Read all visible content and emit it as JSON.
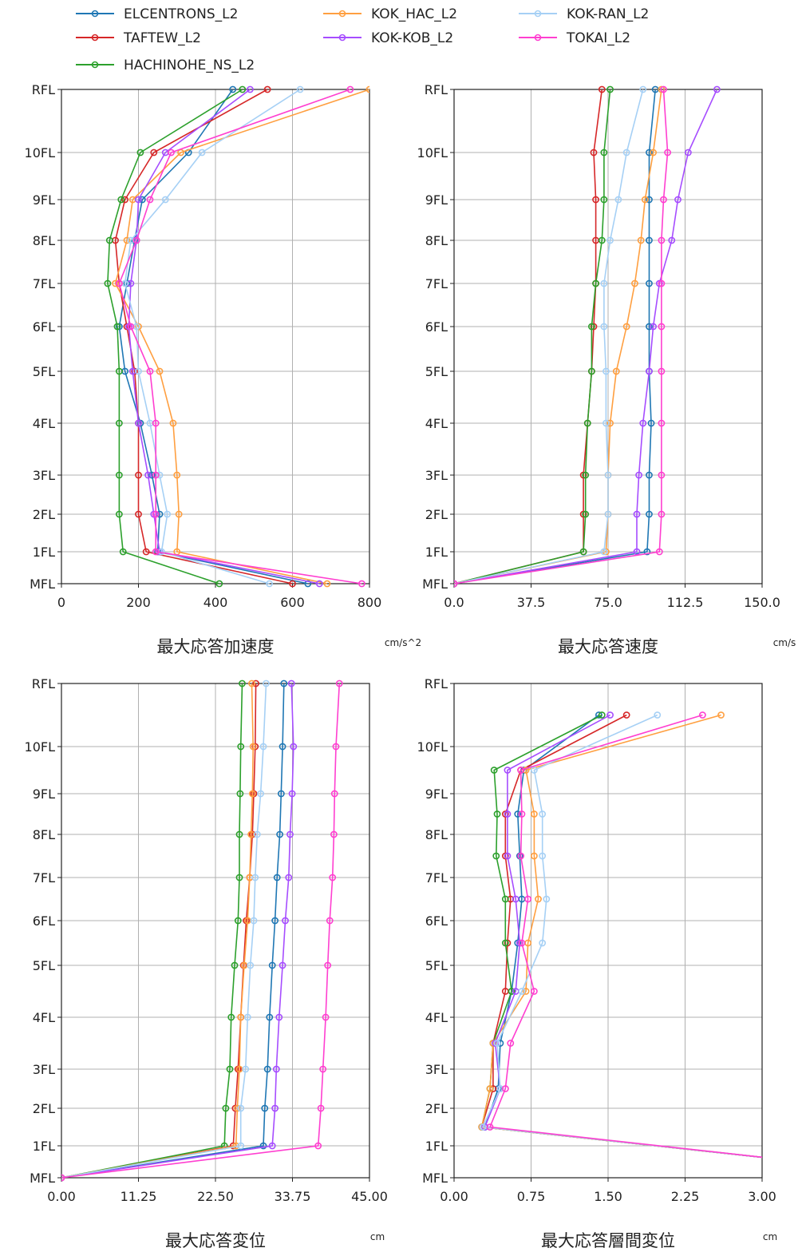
{
  "legend": {
    "placement": "top",
    "items": [
      {
        "label": "ELCENTRONS_L2",
        "color": "#1f77b4"
      },
      {
        "label": "TAFTEW_L2",
        "color": "#d62728"
      },
      {
        "label": "HACHINOHE_NS_L2",
        "color": "#2ca02c"
      },
      {
        "label": "KOK_HAC_L2",
        "color": "#ff9f40"
      },
      {
        "label": "KOK-KOB_L2",
        "color": "#a64dff"
      },
      {
        "label": "KOK-RAN_L2",
        "color": "#a6d0f5"
      },
      {
        "label": "TOKAI_L2",
        "color": "#ff3fd0"
      }
    ]
  },
  "floors": [
    "MFL",
    "1FL",
    "2FL",
    "3FL",
    "4FL",
    "5FL",
    "6FL",
    "7FL",
    "8FL",
    "9FL",
    "10FL",
    "RFL"
  ],
  "chart_data": [
    {
      "type": "line",
      "xlabel": "最大応答加速度",
      "unit": "cm/s^2",
      "xlim": [
        0,
        800
      ],
      "xticks": [
        "0",
        "200",
        "400",
        "600",
        "800"
      ],
      "grid": true,
      "series": [
        {
          "name": "ELCENTRONS_L2",
          "values": [
            640,
            250,
            255,
            235,
            205,
            165,
            150,
            170,
            190,
            210,
            330,
            445
          ]
        },
        {
          "name": "TAFTEW_L2",
          "values": [
            600,
            220,
            200,
            200,
            200,
            190,
            170,
            150,
            140,
            165,
            240,
            535
          ]
        },
        {
          "name": "HACHINOHE_NS_L2",
          "values": [
            410,
            160,
            150,
            150,
            150,
            150,
            145,
            120,
            125,
            155,
            205,
            470
          ]
        },
        {
          "name": "KOK_HAC_L2",
          "values": [
            690,
            300,
            305,
            300,
            290,
            255,
            200,
            140,
            170,
            185,
            310,
            800
          ]
        },
        {
          "name": "KOK-KOB_L2",
          "values": [
            670,
            255,
            240,
            225,
            200,
            185,
            175,
            180,
            195,
            200,
            270,
            490
          ]
        },
        {
          "name": "KOK-RAN_L2",
          "values": [
            540,
            260,
            275,
            255,
            230,
            200,
            195,
            165,
            180,
            270,
            365,
            620
          ]
        },
        {
          "name": "TOKAI_L2",
          "values": [
            780,
            245,
            245,
            245,
            245,
            230,
            180,
            150,
            195,
            230,
            285,
            750
          ]
        }
      ]
    },
    {
      "type": "line",
      "xlabel": "最大応答速度",
      "unit": "cm/s",
      "xlim": [
        0,
        150
      ],
      "xticks": [
        "0.0",
        "37.5",
        "75.0",
        "112.5",
        "150.0"
      ],
      "grid": true,
      "series": [
        {
          "name": "ELCENTRONS_L2",
          "values": [
            0,
            94,
            95,
            95,
            96,
            95,
            95,
            95,
            95,
            95,
            95,
            98
          ]
        },
        {
          "name": "TAFTEW_L2",
          "values": [
            0,
            63,
            63,
            63,
            65,
            67,
            68,
            69,
            69,
            69,
            68,
            72
          ]
        },
        {
          "name": "HACHINOHE_NS_L2",
          "values": [
            0,
            63,
            64,
            64,
            65,
            67,
            67,
            69,
            72,
            73,
            73,
            76
          ]
        },
        {
          "name": "KOK_HAC_L2",
          "values": [
            0,
            74,
            75,
            75,
            76,
            79,
            84,
            88,
            91,
            93,
            97,
            101
          ]
        },
        {
          "name": "KOK-KOB_L2",
          "values": [
            0,
            89,
            89,
            90,
            92,
            95,
            97,
            100,
            106,
            109,
            114,
            128
          ]
        },
        {
          "name": "KOK-RAN_L2",
          "values": [
            0,
            73,
            75,
            75,
            74,
            74,
            73,
            73,
            76,
            80,
            84,
            92
          ]
        },
        {
          "name": "TOKAI_L2",
          "values": [
            0,
            100,
            101,
            101,
            101,
            101,
            101,
            101,
            101,
            102,
            104,
            102
          ]
        }
      ]
    },
    {
      "type": "line",
      "xlabel": "最大応答変位",
      "unit": "cm",
      "xlim": [
        0,
        45
      ],
      "xticks": [
        "0.00",
        "11.25",
        "22.50",
        "33.75",
        "45.00"
      ],
      "grid": true,
      "series": [
        {
          "name": "ELCENTRONS_L2",
          "values": [
            0,
            29.5,
            29.7,
            30.1,
            30.4,
            30.8,
            31.2,
            31.5,
            31.9,
            32.1,
            32.3,
            32.5
          ]
        },
        {
          "name": "TAFTEW_L2",
          "values": [
            0,
            25.1,
            25.4,
            25.8,
            26.2,
            26.6,
            27.0,
            27.5,
            27.9,
            28.1,
            28.3,
            28.4
          ]
        },
        {
          "name": "HACHINOHE_NS_L2",
          "values": [
            0,
            23.8,
            24.0,
            24.6,
            24.8,
            25.3,
            25.8,
            26.0,
            26.0,
            26.1,
            26.2,
            26.4
          ]
        },
        {
          "name": "KOK_HAC_L2",
          "values": [
            0,
            25.5,
            25.7,
            26.0,
            26.2,
            26.7,
            27.2,
            27.5,
            27.7,
            27.9,
            28.0,
            27.8
          ]
        },
        {
          "name": "KOK-KOB_L2",
          "values": [
            0,
            30.8,
            31.2,
            31.4,
            31.8,
            32.3,
            32.7,
            33.2,
            33.4,
            33.7,
            33.9,
            33.6
          ]
        },
        {
          "name": "KOK-RAN_L2",
          "values": [
            0,
            26.2,
            26.2,
            26.9,
            27.2,
            27.6,
            28.1,
            28.3,
            28.6,
            29.1,
            29.5,
            29.9
          ]
        },
        {
          "name": "TOKAI_L2",
          "values": [
            0,
            37.5,
            37.9,
            38.2,
            38.6,
            38.9,
            39.2,
            39.6,
            39.8,
            39.9,
            40.1,
            40.6
          ]
        }
      ]
    },
    {
      "type": "line",
      "xlabel": "最大応答層間変位",
      "unit": "cm",
      "xlim": [
        0,
        3
      ],
      "xticks": [
        "0.00",
        "0.75",
        "1.50",
        "2.25",
        "3.00"
      ],
      "grid": true,
      "series": [
        {
          "name": "ELCENTRONS_L2",
          "values": [
            3.4,
            0.3,
            0.43,
            0.45,
            0.56,
            0.62,
            0.66,
            0.64,
            0.62,
            0.68,
            1.41
          ]
        },
        {
          "name": "TAFTEW_L2",
          "values": [
            3.4,
            0.27,
            0.38,
            0.38,
            0.5,
            0.52,
            0.55,
            0.5,
            0.5,
            0.65,
            1.68
          ]
        },
        {
          "name": "HACHINOHE_NS_L2",
          "values": [
            3.4,
            0.27,
            0.35,
            0.38,
            0.56,
            0.5,
            0.5,
            0.41,
            0.42,
            0.39,
            1.44
          ]
        },
        {
          "name": "KOK_HAC_L2",
          "values": [
            3.4,
            0.27,
            0.35,
            0.38,
            0.7,
            0.72,
            0.82,
            0.78,
            0.78,
            0.7,
            2.6
          ]
        },
        {
          "name": "KOK-KOB_L2",
          "values": [
            3.4,
            0.3,
            0.45,
            0.4,
            0.6,
            0.64,
            0.6,
            0.52,
            0.52,
            0.52,
            1.52
          ]
        },
        {
          "name": "KOK-RAN_L2",
          "values": [
            3.4,
            0.28,
            0.45,
            0.42,
            0.66,
            0.86,
            0.9,
            0.86,
            0.86,
            0.78,
            1.98
          ]
        },
        {
          "name": "TOKAI_L2",
          "values": [
            3.4,
            0.35,
            0.5,
            0.55,
            0.78,
            0.66,
            0.72,
            0.65,
            0.66,
            0.65,
            2.42
          ]
        }
      ]
    }
  ]
}
